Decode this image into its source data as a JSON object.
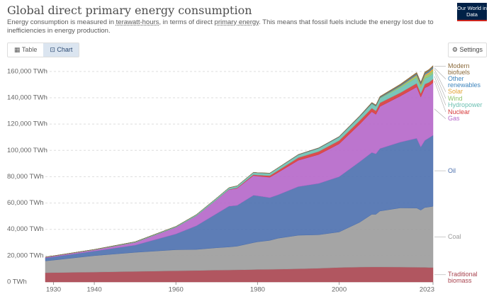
{
  "ui": {
    "subtitle_parts": [
      "Energy consumption is measured in ",
      "terawatt-hours",
      ", in terms of direct ",
      "primary energy",
      ". This means that fossil fuels include the energy lost due to inefficiencies in energy production."
    ],
    "logo": "Our World in Data",
    "tabs": [
      "Table",
      "Chart"
    ],
    "settings": "Settings"
  },
  "chart_data": {
    "type": "stacked_area",
    "title": "Global direct primary energy consumption",
    "x": [
      1928,
      1930,
      1940,
      1950,
      1960,
      1965,
      1970,
      1973,
      1975,
      1979,
      1980,
      1983,
      1985,
      1990,
      1995,
      2000,
      2005,
      2008,
      2009,
      2010,
      2015,
      2019,
      2020,
      2021,
      2022,
      2023
    ],
    "xlim": [
      1928,
      2023
    ],
    "xticks": [
      1930,
      1940,
      1960,
      1980,
      2000,
      2023
    ],
    "ylim": [
      0,
      168000
    ],
    "yticks": [
      {
        "value": 0,
        "label": "0 TWh"
      },
      {
        "value": 20000,
        "label": "20,000 TWh"
      },
      {
        "value": 40000,
        "label": "40,000 TWh"
      },
      {
        "value": 60000,
        "label": "60,000 TWh"
      },
      {
        "value": 80000,
        "label": "80,000 TWh"
      },
      {
        "value": 100000,
        "label": "100,000 TWh"
      },
      {
        "value": 120000,
        "label": "120,000 TWh"
      },
      {
        "value": 140000,
        "label": "140,000 TWh"
      },
      {
        "value": 160000,
        "label": "160,000 TWh"
      }
    ],
    "grid": true,
    "series": [
      {
        "name": "Traditional biomass",
        "color": "#a8444f",
        "values": [
          7000,
          7100,
          7500,
          8000,
          8500,
          8700,
          9000,
          9100,
          9200,
          9400,
          9500,
          9600,
          9700,
          10000,
          10400,
          11000,
          11300,
          11400,
          11400,
          11400,
          11300,
          11200,
          11100,
          11100,
          11000,
          11000
        ]
      },
      {
        "name": "Coal",
        "color": "#9b9b9b",
        "values": [
          9000,
          9500,
          12500,
          14500,
          16000,
          16000,
          17000,
          17500,
          18000,
          20500,
          21000,
          22000,
          23500,
          25500,
          25500,
          27000,
          34000,
          40000,
          40000,
          42500,
          45000,
          45000,
          43500,
          45500,
          46000,
          46500
        ]
      },
      {
        "name": "Oil",
        "color": "#4b6fae",
        "values": [
          2300,
          2500,
          3500,
          5500,
          12000,
          18000,
          26000,
          31000,
          31000,
          36000,
          35000,
          32500,
          33000,
          37000,
          39000,
          42000,
          46000,
          47000,
          46000,
          47500,
          50000,
          53000,
          48000,
          51000,
          52500,
          54000
        ]
      },
      {
        "name": "Gas",
        "color": "#b566c9",
        "values": [
          500,
          600,
          900,
          2000,
          5000,
          7500,
          10500,
          12500,
          13000,
          15000,
          15000,
          15500,
          17000,
          20000,
          22000,
          25000,
          28500,
          31000,
          30000,
          32000,
          35000,
          39000,
          38000,
          40000,
          39500,
          40000
        ]
      },
      {
        "name": "Nuclear",
        "color": "#d63a3a",
        "values": [
          0,
          0,
          0,
          0,
          0,
          25,
          80,
          200,
          370,
          700,
          750,
          1200,
          1500,
          2000,
          2300,
          2500,
          2750,
          2700,
          2650,
          2750,
          2550,
          2800,
          2700,
          2800,
          2700,
          2700
        ]
      },
      {
        "name": "Hydropower",
        "color": "#6cc0b2",
        "values": [
          150,
          170,
          300,
          550,
          700,
          900,
          1200,
          1300,
          1450,
          1650,
          1700,
          1800,
          1900,
          2100,
          2400,
          2600,
          2900,
          3200,
          3250,
          3400,
          3900,
          4200,
          4300,
          4300,
          4300,
          4200
        ]
      },
      {
        "name": "Wind",
        "color": "#8fc46a",
        "values": [
          0,
          0,
          0,
          0,
          0,
          0,
          0,
          0,
          0,
          0,
          0,
          0,
          0,
          4,
          8,
          31,
          104,
          220,
          276,
          342,
          831,
          1420,
          1590,
          1850,
          2100,
          2300
        ]
      },
      {
        "name": "Solar",
        "color": "#e3a434",
        "values": [
          0,
          0,
          0,
          0,
          0,
          0,
          0,
          0,
          0,
          0,
          0,
          0,
          0,
          0,
          0,
          1,
          4,
          12,
          20,
          32,
          256,
          700,
          850,
          1030,
          1300,
          1600
        ]
      },
      {
        "name": "Other renewables",
        "color": "#3c84bd",
        "values": [
          0,
          0,
          0,
          0,
          20,
          30,
          50,
          60,
          70,
          90,
          100,
          130,
          160,
          250,
          300,
          330,
          400,
          460,
          490,
          530,
          700,
          850,
          900,
          950,
          980,
          1000
        ]
      },
      {
        "name": "Modern biofuels",
        "color": "#8b6a3a",
        "values": [
          0,
          0,
          0,
          0,
          0,
          0,
          0,
          0,
          0,
          0,
          20,
          40,
          50,
          70,
          80,
          110,
          240,
          480,
          520,
          600,
          850,
          1100,
          1000,
          1100,
          1150,
          1200
        ]
      }
    ]
  }
}
